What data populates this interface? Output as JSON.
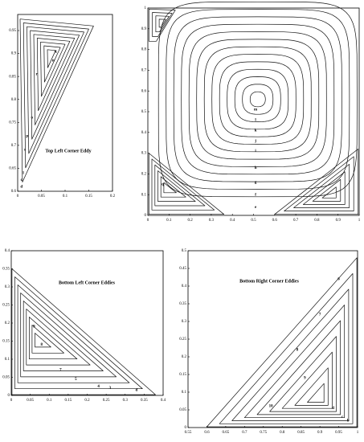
{
  "chart_data": [
    {
      "type": "contour",
      "title": "Top Left Corner Eddy",
      "xlim": [
        0,
        0.2
      ],
      "xticks": [
        0,
        0.05,
        0.1,
        0.15,
        0.2
      ],
      "ylim": [
        0.6,
        0.985
      ],
      "yticks": [
        0.6,
        0.65,
        0.7,
        0.75,
        0.8,
        0.85,
        0.9,
        0.95
      ],
      "contour_labels": [
        "q",
        "n",
        "r",
        "o",
        "p",
        "s",
        "l",
        "c",
        "d"
      ]
    },
    {
      "type": "contour",
      "xlim": [
        0,
        1
      ],
      "xticks": [
        0,
        0.1,
        0.2,
        0.3,
        0.4,
        0.5,
        0.6,
        0.7,
        0.8,
        0.9,
        1
      ],
      "ylim": [
        0,
        1
      ],
      "yticks": [
        0,
        0.1,
        0.2,
        0.3,
        0.4,
        0.5,
        0.6,
        0.7,
        0.8,
        0.9,
        1
      ],
      "contour_labels": [
        "m",
        "l",
        "k",
        "j",
        "i",
        "h",
        "g",
        "f",
        "e",
        "q"
      ]
    },
    {
      "type": "contour",
      "title": "Bottom Left Corner Eddies",
      "xlim": [
        0,
        0.4
      ],
      "xticks": [
        0,
        0.05,
        0.1,
        0.15,
        0.2,
        0.25,
        0.3,
        0.35,
        0.4
      ],
      "ylim": [
        0,
        0.4
      ],
      "yticks": [
        0,
        0.05,
        0.1,
        0.15,
        0.2,
        0.25,
        0.3,
        0.35,
        0.4
      ],
      "contour_labels": [
        "9",
        "8",
        "7",
        "5",
        "4",
        "3",
        "d"
      ]
    },
    {
      "type": "contour",
      "title": "Bottom Right Corner Eddies",
      "xlim": [
        0.55,
        1
      ],
      "xticks": [
        0.55,
        0.6,
        0.65,
        0.7,
        0.75,
        0.8,
        0.85,
        0.9,
        0.95,
        1
      ],
      "ylim": [
        0,
        0.5
      ],
      "yticks": [
        0,
        0.05,
        0.1,
        0.15,
        0.2,
        0.25,
        0.3,
        0.35,
        0.4,
        0.45,
        0.5
      ],
      "contour_labels": [
        "10",
        "d",
        "9",
        "8",
        "7",
        "6",
        "c",
        "b"
      ]
    }
  ]
}
